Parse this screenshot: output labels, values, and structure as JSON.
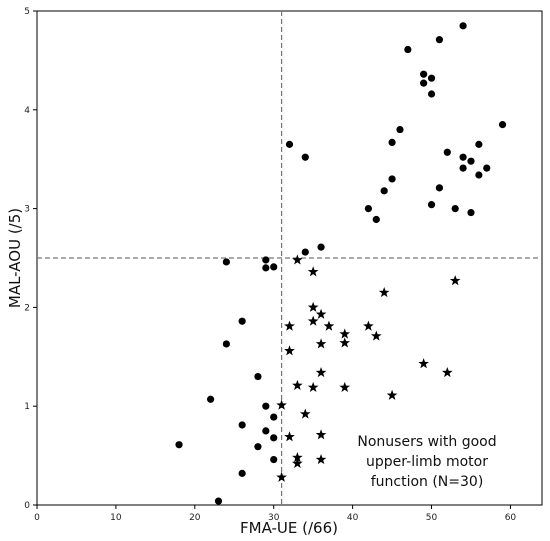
{
  "chart_data": {
    "type": "scatter",
    "title": "",
    "xlabel": "FMA-UE (/66)",
    "ylabel": "MAL-AOU (/5)",
    "xlim": [
      0,
      64
    ],
    "ylim": [
      0,
      5
    ],
    "x_ticks": [
      0,
      10,
      20,
      30,
      40,
      50,
      60
    ],
    "y_ticks": [
      0,
      1,
      2,
      3,
      4,
      5
    ],
    "grid": false,
    "reference_lines": [
      {
        "orientation": "vertical",
        "value": 31,
        "style": "dashed",
        "color": "#777777"
      },
      {
        "orientation": "horizontal",
        "value": 2.5,
        "style": "dashed",
        "color": "#777777"
      }
    ],
    "annotation": {
      "lines": [
        "Nonusers with good",
        "upper-limb motor",
        "function (N=30)"
      ]
    },
    "series": [
      {
        "marker": "circle",
        "color": "#000000",
        "points": [
          [
            23,
            0.04
          ],
          [
            18,
            0.61
          ],
          [
            22,
            1.07
          ],
          [
            26,
            0.32
          ],
          [
            26,
            0.81
          ],
          [
            24,
            1.63
          ],
          [
            26,
            1.86
          ],
          [
            28,
            0.59
          ],
          [
            28,
            1.3
          ],
          [
            29,
            0.75
          ],
          [
            29,
            1.0
          ],
          [
            30,
            0.46
          ],
          [
            30,
            0.68
          ],
          [
            30,
            0.89
          ],
          [
            24,
            2.46
          ],
          [
            29,
            2.4
          ],
          [
            29,
            2.48
          ],
          [
            30,
            2.41
          ],
          [
            34,
            2.56
          ],
          [
            36,
            2.61
          ],
          [
            32,
            3.65
          ],
          [
            34,
            3.52
          ],
          [
            42,
            3.0
          ],
          [
            43,
            2.89
          ],
          [
            44,
            3.18
          ],
          [
            45,
            3.3
          ],
          [
            45,
            3.67
          ],
          [
            46,
            3.8
          ],
          [
            47,
            4.61
          ],
          [
            49,
            4.36
          ],
          [
            49,
            4.27
          ],
          [
            50,
            4.32
          ],
          [
            50,
            4.16
          ],
          [
            51,
            4.71
          ],
          [
            54,
            4.85
          ],
          [
            50,
            3.04
          ],
          [
            51,
            3.21
          ],
          [
            52,
            3.57
          ],
          [
            53,
            3.0
          ],
          [
            54,
            3.52
          ],
          [
            54,
            3.41
          ],
          [
            55,
            3.48
          ],
          [
            55,
            2.96
          ],
          [
            56,
            3.65
          ],
          [
            56,
            3.34
          ],
          [
            57,
            3.41
          ],
          [
            59,
            3.85
          ]
        ]
      },
      {
        "marker": "star",
        "color": "#000000",
        "points": [
          [
            31,
            0.28
          ],
          [
            33,
            0.42
          ],
          [
            33,
            0.48
          ],
          [
            36,
            0.46
          ],
          [
            32,
            0.69
          ],
          [
            36,
            0.71
          ],
          [
            34,
            0.92
          ],
          [
            31,
            1.01
          ],
          [
            33,
            1.21
          ],
          [
            35,
            1.19
          ],
          [
            36,
            1.34
          ],
          [
            39,
            1.19
          ],
          [
            45,
            1.11
          ],
          [
            49,
            1.43
          ],
          [
            52,
            1.34
          ],
          [
            32,
            1.56
          ],
          [
            36,
            1.63
          ],
          [
            39,
            1.64
          ],
          [
            43,
            1.71
          ],
          [
            39,
            1.73
          ],
          [
            32,
            1.81
          ],
          [
            37,
            1.81
          ],
          [
            42,
            1.81
          ],
          [
            35,
            1.86
          ],
          [
            36,
            1.93
          ],
          [
            35,
            2.0
          ],
          [
            44,
            2.15
          ],
          [
            53,
            2.27
          ],
          [
            35,
            2.36
          ],
          [
            33,
            2.48
          ]
        ]
      }
    ]
  }
}
